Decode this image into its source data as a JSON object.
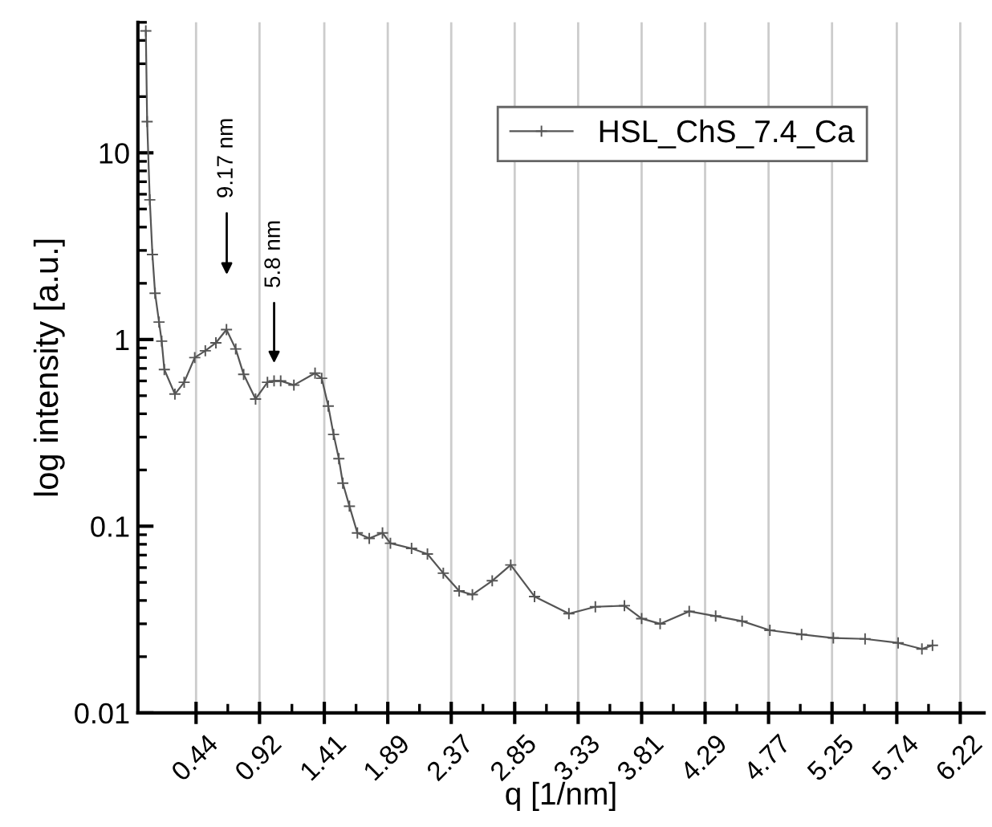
{
  "chart_data": {
    "type": "line",
    "xlabel": "q [1/nm]",
    "ylabel": "log intensity [a.u.]",
    "series": [
      {
        "name": "HSL_ChS_7.4_Ca",
        "color": "#555555",
        "x": [
          0.06,
          0.07,
          0.09,
          0.11,
          0.13,
          0.16,
          0.18,
          0.2,
          0.28,
          0.35,
          0.43,
          0.51,
          0.59,
          0.67,
          0.74,
          0.8,
          0.89,
          0.98,
          1.03,
          1.08,
          1.18,
          1.34,
          1.39,
          1.44,
          1.48,
          1.52,
          1.55,
          1.6,
          1.66,
          1.75,
          1.85,
          1.91,
          2.07,
          2.19,
          2.31,
          2.43,
          2.53,
          2.68,
          2.82,
          3.0,
          3.26,
          3.46,
          3.68,
          3.81,
          3.95,
          4.17,
          4.37,
          4.57,
          4.78,
          5.02,
          5.26,
          5.5,
          5.75,
          5.93,
          6.01
        ],
        "values": [
          45,
          14.7,
          5.6,
          2.85,
          1.77,
          1.24,
          0.98,
          0.69,
          0.51,
          0.59,
          0.8,
          0.87,
          0.96,
          1.13,
          0.89,
          0.65,
          0.48,
          0.59,
          0.6,
          0.6,
          0.57,
          0.66,
          0.62,
          0.44,
          0.31,
          0.23,
          0.17,
          0.128,
          0.092,
          0.086,
          0.092,
          0.081,
          0.076,
          0.071,
          0.056,
          0.045,
          0.043,
          0.051,
          0.062,
          0.042,
          0.034,
          0.037,
          0.0375,
          0.032,
          0.03,
          0.035,
          0.033,
          0.031,
          0.0277,
          0.0263,
          0.0252,
          0.0249,
          0.0237,
          0.022,
          0.023
        ]
      }
    ],
    "xlim": [
      0,
      6.4
    ],
    "xticks": [
      0.44,
      0.92,
      1.41,
      1.89,
      2.37,
      2.85,
      3.33,
      3.81,
      4.29,
      4.77,
      5.25,
      5.74,
      6.22
    ],
    "ylim": [
      0.01,
      50
    ],
    "yticks": [
      0.01,
      0.1,
      1,
      10
    ],
    "log": "y",
    "grid": "x",
    "legend": "top right",
    "marker": "cross",
    "line_style": "solid",
    "annotations": [
      "9.17 nm",
      "5.8 nm"
    ]
  }
}
